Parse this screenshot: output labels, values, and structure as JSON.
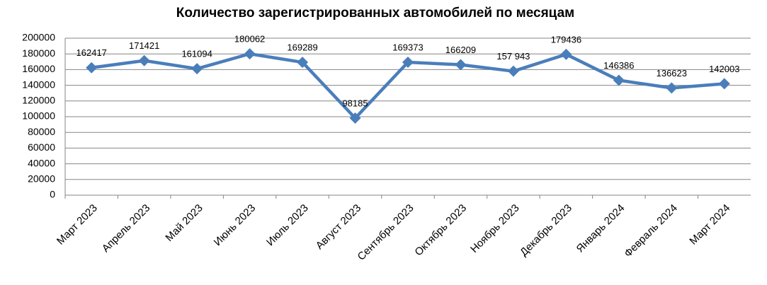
{
  "chart_data": {
    "type": "line",
    "title": "Количество зарегистрированных автомобилей по месяцам",
    "categories": [
      "Март 2023",
      "Апрель 2023",
      "Май 2023",
      "Июнь 2023",
      "Июль 2023",
      "Август 2023",
      "Сентябрь 2023",
      "Октябрь 2023",
      "Ноябрь 2023",
      "Декабрь 2023",
      "Январь 2024",
      "Февраль 2024",
      "Март 2024"
    ],
    "values": [
      162417,
      171421,
      161094,
      180062,
      169289,
      98185,
      169373,
      166209,
      157943,
      179436,
      146386,
      136623,
      142003
    ],
    "value_labels": [
      "162417",
      "171421",
      "161094",
      "180062",
      "169289",
      "98185",
      "169373",
      "166209",
      "157 943",
      "179436",
      "146386",
      "136623",
      "142003"
    ],
    "color": "#4a7ebb",
    "ylim": [
      0,
      200000
    ],
    "yticks": [
      0,
      20000,
      40000,
      60000,
      80000,
      100000,
      120000,
      140000,
      160000,
      180000,
      200000
    ],
    "grid": true
  }
}
